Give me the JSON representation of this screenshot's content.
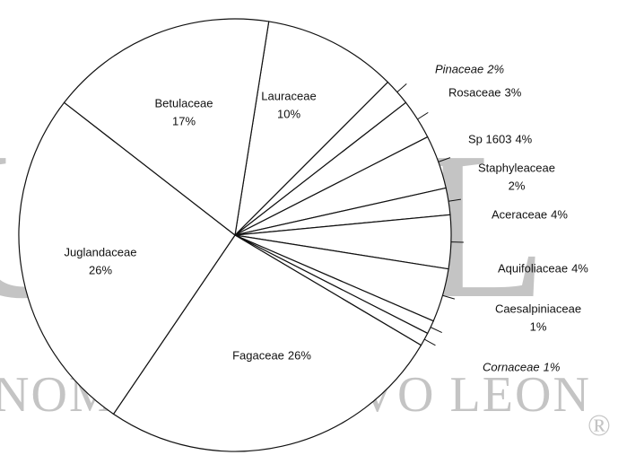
{
  "chart_data": {
    "type": "pie",
    "categories": [
      "Lauraceae",
      "Pinaceae",
      "Rosaceae",
      "Sp 1603",
      "Staphyleaceae",
      "Aceraceae",
      "Aquifoliaceae",
      "Caesalpiniaceae",
      "Cornaceae",
      "Fagaceae",
      "Juglandaceae",
      "Betulaceae"
    ],
    "values": [
      10,
      2,
      3,
      4,
      2,
      4,
      4,
      1,
      1,
      26,
      26,
      17
    ],
    "value_labels": [
      "10%",
      "2%",
      "3%",
      "4%",
      "2%",
      "4%",
      "4%",
      "1%",
      "1%",
      "26%",
      "26%",
      "17%"
    ],
    "color": "#ffffff",
    "watermark": [
      "UANL",
      "NOMA DE NUEVO LEON",
      "®"
    ]
  }
}
